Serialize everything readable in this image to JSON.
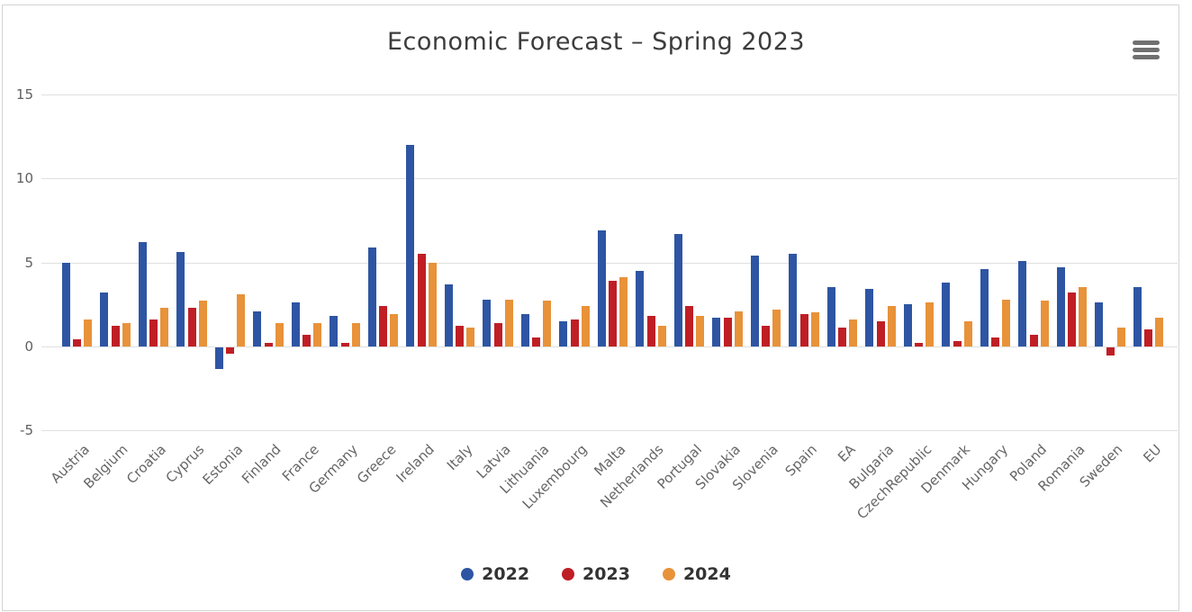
{
  "header": {
    "title": "Economic Forecast – Spring 2023"
  },
  "chart_data": {
    "type": "bar",
    "title": "Economic Forecast – Spring 2023",
    "categories": [
      "Austria",
      "Belgium",
      "Croatia",
      "Cyprus",
      "Estonia",
      "Finland",
      "France",
      "Germany",
      "Greece",
      "Ireland",
      "Italy",
      "Latvia",
      "Lithuania",
      "Luxembourg",
      "Malta",
      "Netherlands",
      "Portugal",
      "Slovakia",
      "Slovenia",
      "Spain",
      "EA",
      "Bulgaria",
      "CzechRepublic",
      "Denmark",
      "Hungary",
      "Poland",
      "Romania",
      "Sweden",
      "EU"
    ],
    "series": [
      {
        "name": "2022",
        "color": "#2e55a3",
        "values": [
          5.0,
          3.2,
          6.2,
          5.6,
          -1.3,
          2.1,
          2.6,
          1.8,
          5.9,
          12.0,
          3.7,
          2.8,
          1.9,
          1.5,
          6.9,
          4.5,
          6.7,
          1.7,
          5.4,
          5.5,
          3.5,
          3.4,
          2.5,
          3.8,
          4.6,
          5.1,
          4.7,
          2.6,
          3.5
        ]
      },
      {
        "name": "2023",
        "color": "#bf1e25",
        "values": [
          0.4,
          1.2,
          1.6,
          2.3,
          -0.4,
          0.2,
          0.7,
          0.2,
          2.4,
          5.5,
          1.2,
          1.4,
          0.5,
          1.6,
          3.9,
          1.8,
          2.4,
          1.7,
          1.2,
          1.9,
          1.1,
          1.5,
          0.2,
          0.3,
          0.5,
          0.7,
          3.2,
          -0.5,
          1.0
        ]
      },
      {
        "name": "2024",
        "color": "#e8923a",
        "values": [
          1.6,
          1.4,
          2.3,
          2.7,
          3.1,
          1.4,
          1.4,
          1.4,
          1.9,
          5.0,
          1.1,
          2.8,
          2.7,
          2.4,
          4.1,
          1.2,
          1.8,
          2.1,
          2.2,
          2.0,
          1.6,
          2.4,
          2.6,
          1.5,
          2.8,
          2.7,
          3.5,
          1.1,
          1.7
        ]
      }
    ],
    "ylim": [
      -5,
      15
    ],
    "yticks": [
      15,
      10,
      5,
      0,
      -5
    ],
    "grid": true,
    "legend_position": "bottom-center",
    "x_label_rotation": -45
  },
  "colors": {
    "grid": "#e0e0e0",
    "axis_labels": "#666666",
    "title": "#3c3c3c",
    "legend_text": "#333333",
    "border": "#d4d4d4",
    "menu_icon": "#707070"
  }
}
